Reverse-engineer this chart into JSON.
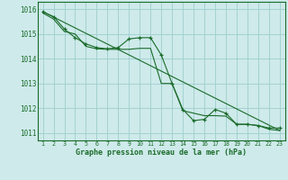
{
  "title": "Graphe pression niveau de la mer (hPa)",
  "background_color": "#ceeaea",
  "grid_color": "#9ecece",
  "line_color": "#1a6b2a",
  "x_labels": [
    1,
    2,
    3,
    4,
    5,
    6,
    7,
    8,
    9,
    10,
    11,
    12,
    13,
    14,
    15,
    16,
    17,
    18,
    19,
    20,
    21,
    22,
    23
  ],
  "ylim": [
    1010.7,
    1016.3
  ],
  "yticks": [
    1011,
    1012,
    1013,
    1014,
    1015,
    1016
  ],
  "xlim": [
    0.5,
    23.5
  ],
  "line1_x": [
    1,
    2,
    3,
    4,
    5,
    6,
    7,
    8,
    9,
    10,
    11,
    12,
    13,
    14,
    15,
    16,
    17,
    18,
    19,
    20,
    21,
    22,
    23
  ],
  "line1_y": [
    1015.9,
    1015.7,
    1015.2,
    1014.85,
    1014.6,
    1014.45,
    1014.4,
    1014.45,
    1014.8,
    1014.85,
    1014.85,
    1014.15,
    1013.0,
    1011.95,
    1011.5,
    1011.55,
    1011.95,
    1011.8,
    1011.35,
    1011.35,
    1011.3,
    1011.2,
    1011.2
  ],
  "line2_x": [
    1,
    2,
    3,
    4,
    5,
    6,
    7,
    8,
    9,
    10,
    11,
    12,
    13,
    14,
    15,
    16,
    17,
    18,
    19,
    20,
    21,
    22,
    23
  ],
  "line2_y": [
    1015.85,
    1015.6,
    1015.1,
    1015.0,
    1014.5,
    1014.4,
    1014.38,
    1014.38,
    1014.38,
    1014.42,
    1014.42,
    1013.0,
    1013.0,
    1011.9,
    1011.8,
    1011.7,
    1011.7,
    1011.68,
    1011.35,
    1011.35,
    1011.3,
    1011.15,
    1011.1
  ],
  "trend_x": [
    1,
    23
  ],
  "trend_y": [
    1015.9,
    1011.1
  ]
}
